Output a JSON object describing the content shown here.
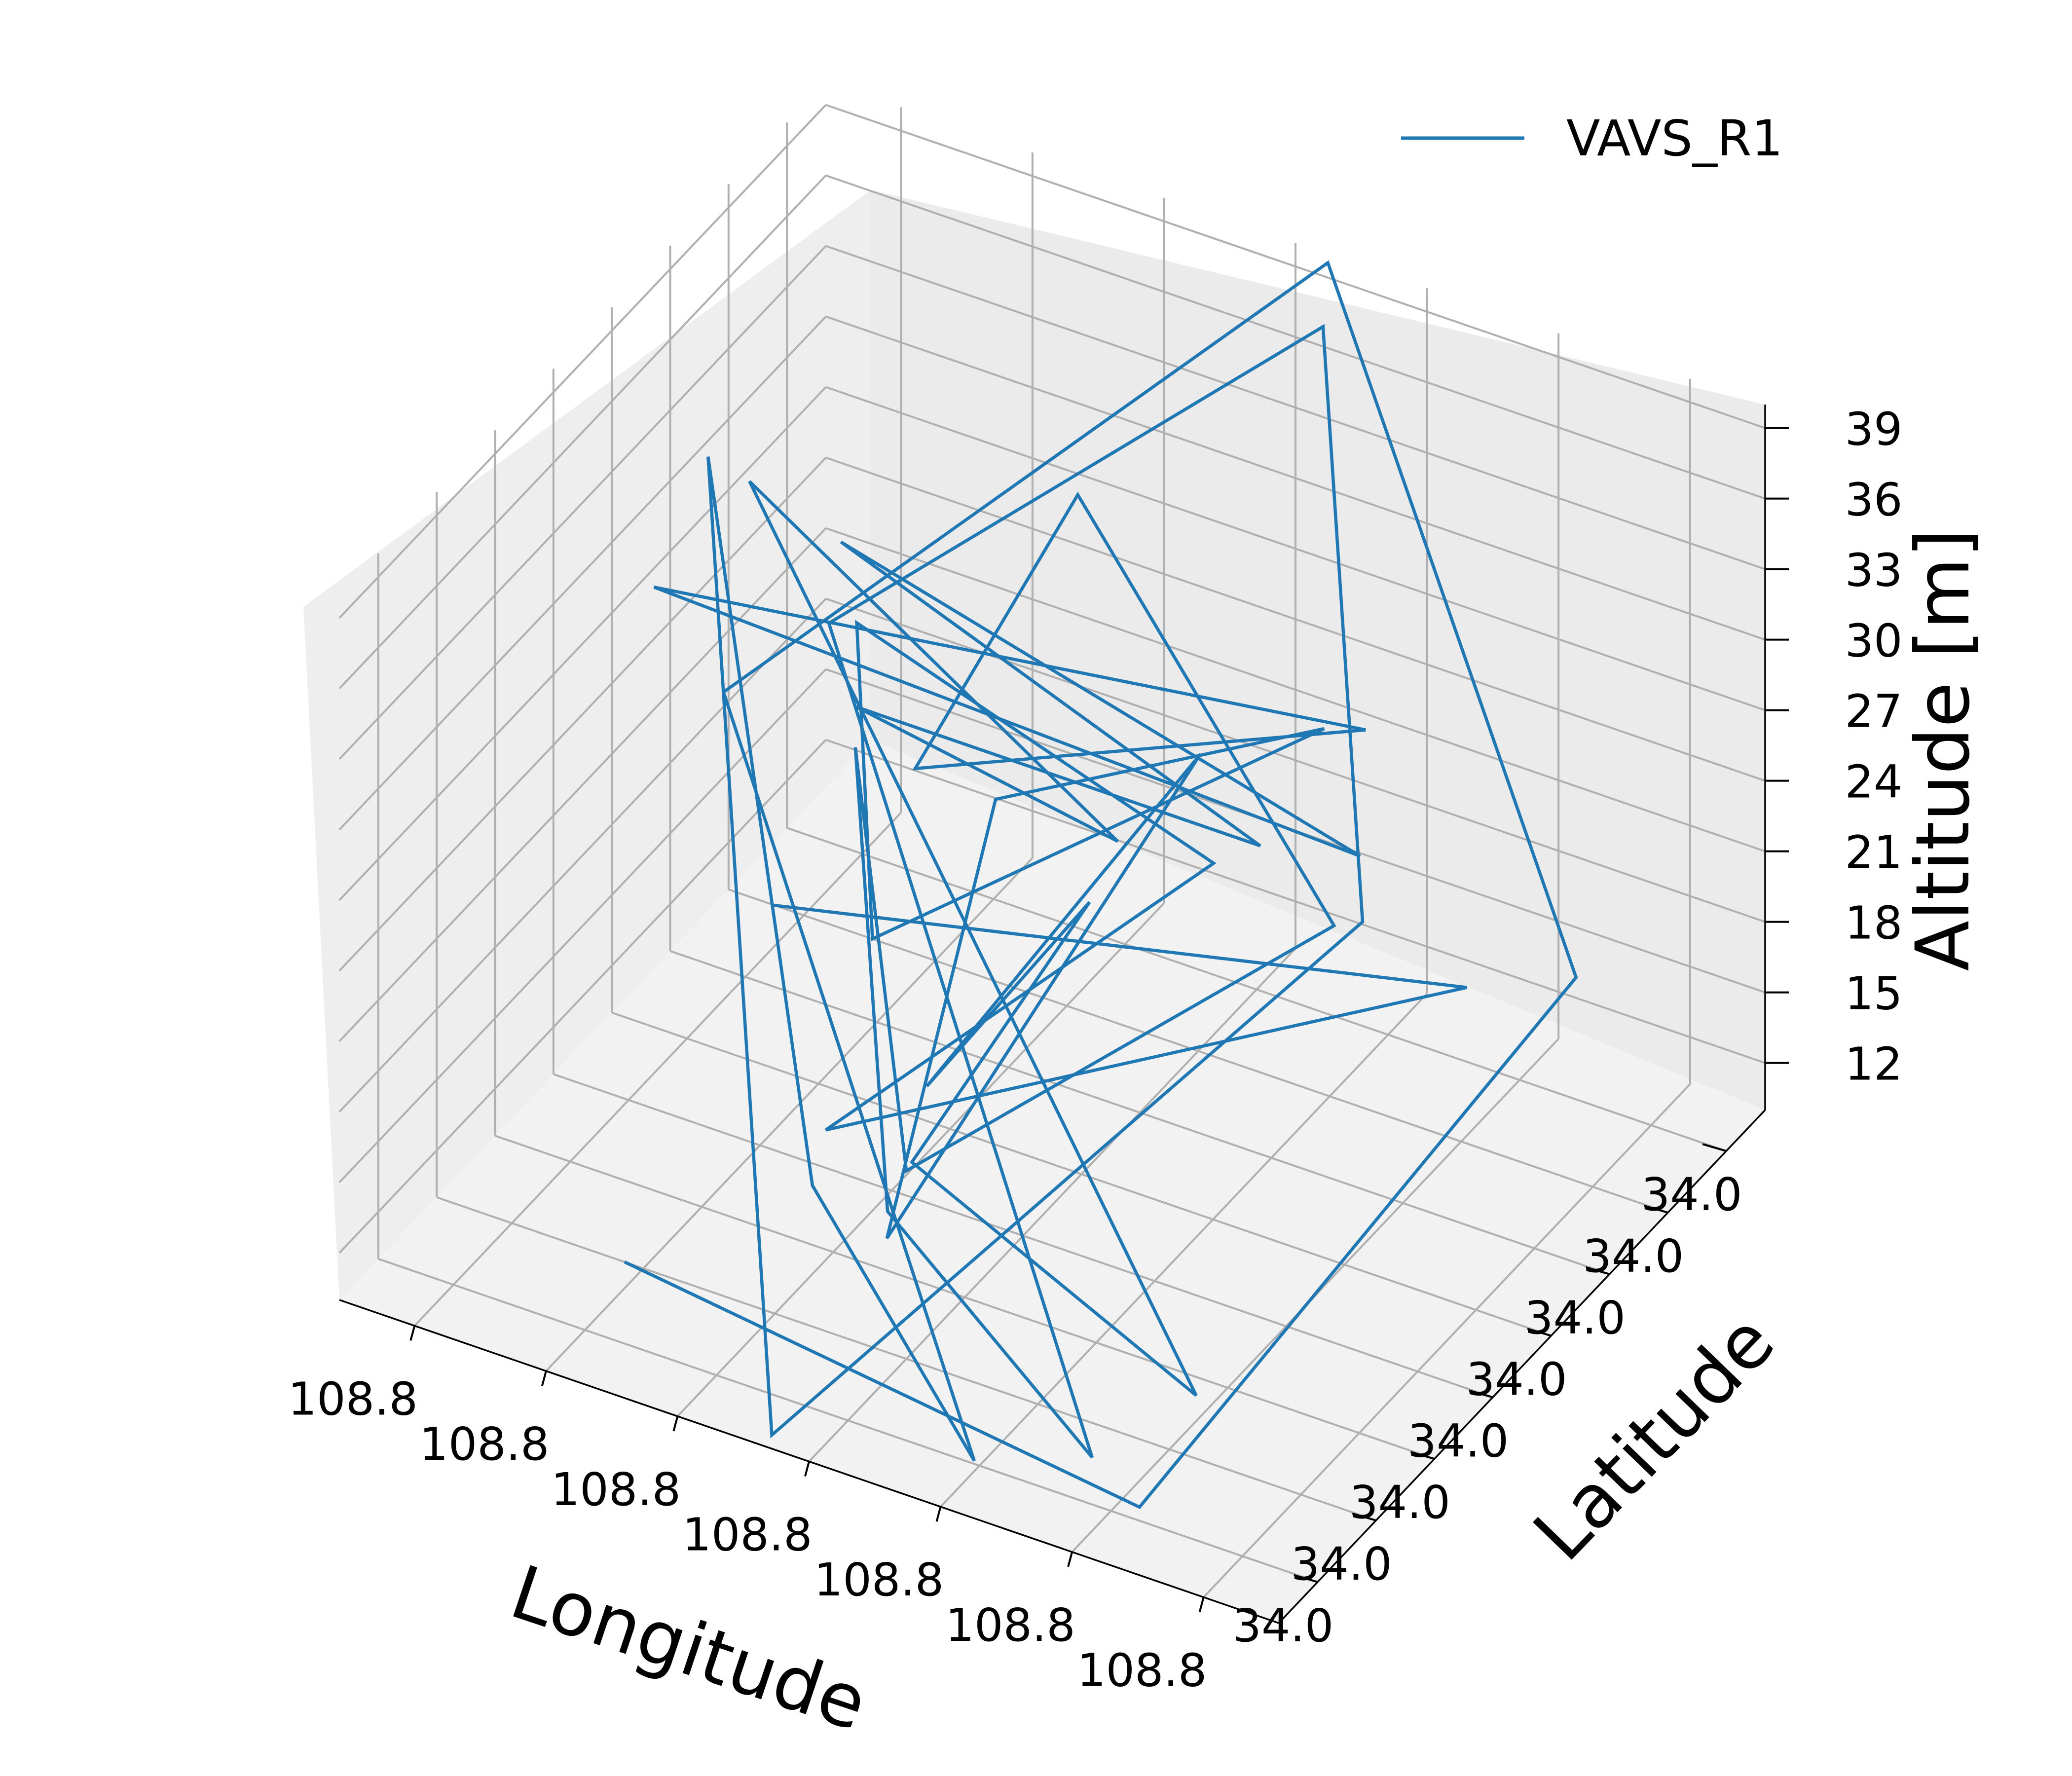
{
  "chart_data": {
    "type": "line3d",
    "title": "",
    "xlabel": "Longitude",
    "ylabel": "Latitude",
    "zlabel": "Altitude [m]",
    "xticks": [
      "108.8",
      "108.8",
      "108.8",
      "108.8",
      "108.8",
      "108.8",
      "108.8"
    ],
    "yticks": [
      "34.0",
      "34.0",
      "34.0",
      "34.0",
      "34.0",
      "34.0",
      "34.0",
      "34.0"
    ],
    "zticks": [
      12,
      15,
      18,
      21,
      24,
      27,
      30,
      33,
      36,
      39
    ],
    "zlim": [
      10,
      40
    ],
    "grid": true,
    "legend_position": "top-right",
    "series": [
      {
        "name": "VAVS_R1",
        "color": "#1f77b4",
        "points": [
          [
            0.8,
            0.2,
            10.0
          ],
          [
            0.2,
            0.1,
            10.0
          ],
          [
            0.02,
            0.65,
            23.0
          ],
          [
            0.45,
            0.97,
            40.5
          ],
          [
            0.85,
            0.5,
            27.0
          ],
          [
            0.35,
            0.05,
            11.0
          ],
          [
            0.6,
            0.2,
            16.0
          ],
          [
            0.97,
            0.7,
            31.0
          ],
          [
            0.55,
            0.02,
            10.0
          ],
          [
            0.18,
            0.52,
            26.0
          ],
          [
            0.45,
            0.96,
            38.0
          ],
          [
            0.8,
            0.62,
            28.0
          ],
          [
            0.24,
            0.08,
            12.0
          ],
          [
            0.52,
            0.2,
            16.0
          ],
          [
            0.72,
            0.52,
            26.0
          ],
          [
            0.5,
            0.2,
            18.0
          ],
          [
            0.2,
            0.5,
            26.0
          ],
          [
            0.68,
            0.9,
            29.0
          ],
          [
            0.62,
            0.45,
            28.0
          ],
          [
            0.27,
            0.7,
            29.0
          ],
          [
            0.95,
            0.55,
            29.0
          ],
          [
            0.25,
            0.65,
            25.0
          ],
          [
            0.87,
            0.78,
            27.0
          ],
          [
            0.32,
            0.58,
            26.0
          ],
          [
            0.75,
            0.58,
            26.0
          ],
          [
            0.42,
            0.48,
            27.0
          ],
          [
            0.9,
            0.65,
            32.0
          ],
          [
            0.15,
            0.12,
            15.0
          ],
          [
            0.52,
            0.25,
            17.0
          ],
          [
            0.45,
            0.48,
            24.0
          ],
          [
            0.53,
            0.3,
            19.0
          ],
          [
            0.42,
            0.65,
            27.0
          ],
          [
            0.5,
            0.16,
            16.0
          ],
          [
            0.55,
            0.48,
            27.0
          ],
          [
            0.34,
            0.75,
            27.0
          ],
          [
            0.65,
            0.42,
            21.0
          ],
          [
            0.76,
            0.6,
            29.0
          ],
          [
            0.38,
            0.6,
            24.0
          ],
          [
            0.56,
            0.15,
            20.0
          ],
          [
            0.1,
            0.58,
            23.0
          ],
          [
            0.72,
            0.35,
            23.0
          ]
        ]
      }
    ]
  }
}
